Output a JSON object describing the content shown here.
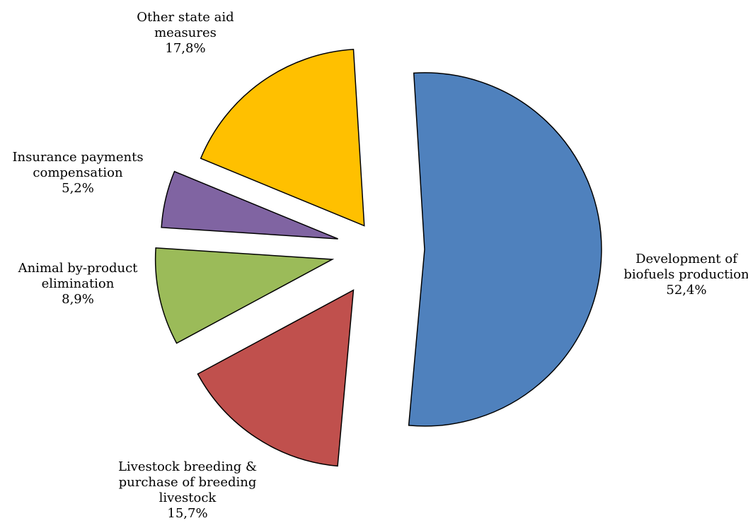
{
  "chart_data": {
    "type": "pie",
    "title": "",
    "slices": [
      {
        "name": "Development of biofuels production",
        "lines": [
          "Development of",
          "biofuels production"
        ],
        "value": 52.4,
        "value_label": "52,4%",
        "color": "#4F81BD"
      },
      {
        "name": "Livestock breeding & purchase of breeding livestock",
        "lines": [
          "Livestock breeding &",
          "purchase of breeding",
          "livestock"
        ],
        "value": 15.7,
        "value_label": "15,7%",
        "color": "#C0504D"
      },
      {
        "name": "Animal by-product elimination",
        "lines": [
          "Animal by-product",
          "elimination"
        ],
        "value": 8.9,
        "value_label": "8,9%",
        "color": "#9BBB59"
      },
      {
        "name": "Insurance payments compensation",
        "lines": [
          "Insurance payments",
          "compensation"
        ],
        "value": 5.2,
        "value_label": "5,2%",
        "color": "#8064A2"
      },
      {
        "name": "Other state aid measures",
        "lines": [
          "Other state aid",
          "measures"
        ],
        "value": 17.8,
        "value_label": "17,8%",
        "color": "#FFC000"
      }
    ]
  }
}
